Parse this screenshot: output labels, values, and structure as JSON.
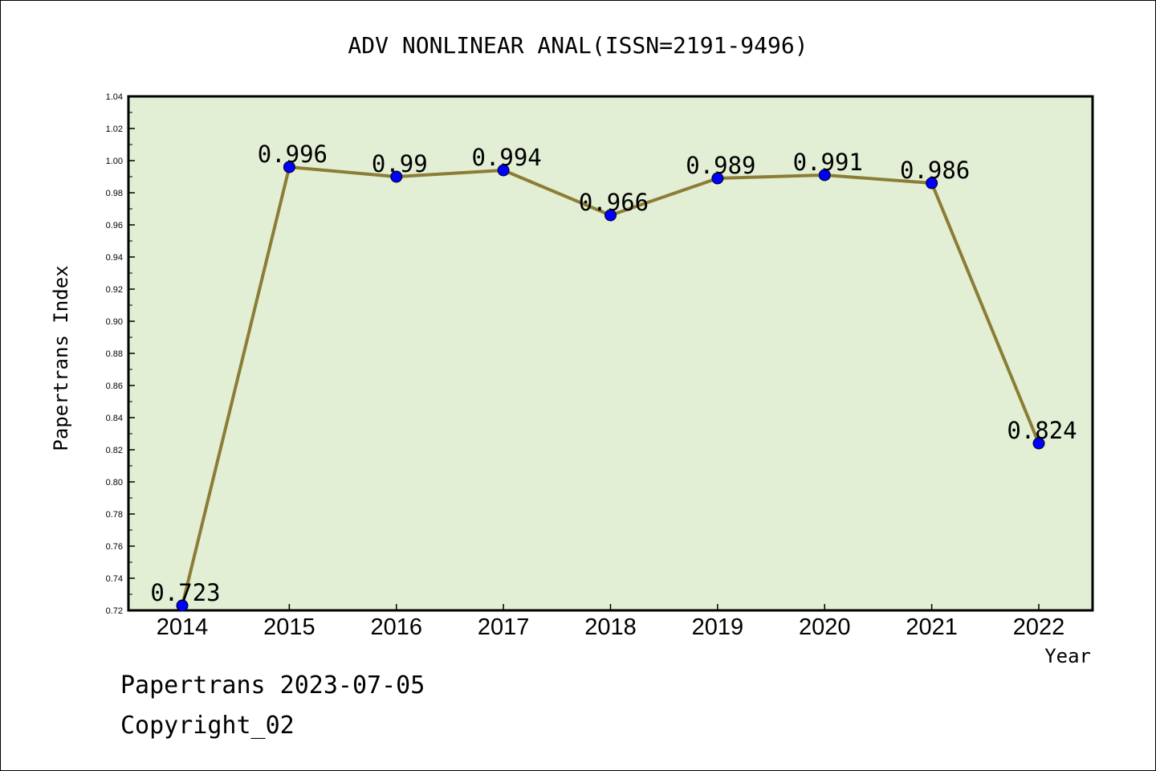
{
  "chart_data": {
    "type": "line",
    "title": "ADV NONLINEAR ANAL(ISSN=2191-9496)",
    "xlabel": "Year",
    "ylabel": "Papertrans Index",
    "categories": [
      "2014",
      "2015",
      "2016",
      "2017",
      "2018",
      "2019",
      "2020",
      "2021",
      "2022"
    ],
    "series": [
      {
        "values": [
          0.723,
          0.996,
          0.99,
          0.994,
          0.966,
          0.989,
          0.991,
          0.986,
          0.824
        ]
      }
    ],
    "data_labels": [
      "0.723",
      "0.996",
      "0.99",
      "0.994",
      "0.966",
      "0.989",
      "0.991",
      "0.986",
      "0.824"
    ],
    "ylim": [
      0.72,
      1.04
    ],
    "yticks": [
      "0.72",
      "0.74",
      "0.76",
      "0.78",
      "0.80",
      "0.82",
      "0.84",
      "0.86",
      "0.88",
      "0.90",
      "0.92",
      "0.94",
      "0.96",
      "0.98",
      "1.00",
      "1.02",
      "1.04"
    ],
    "grid": false,
    "colors": {
      "plot_background": "#e2efd5",
      "line": "#8b7d35",
      "marker": "#0000ff"
    }
  },
  "footer": {
    "line1": "Papertrans 2023-07-05",
    "line2": "Copyright_02"
  }
}
